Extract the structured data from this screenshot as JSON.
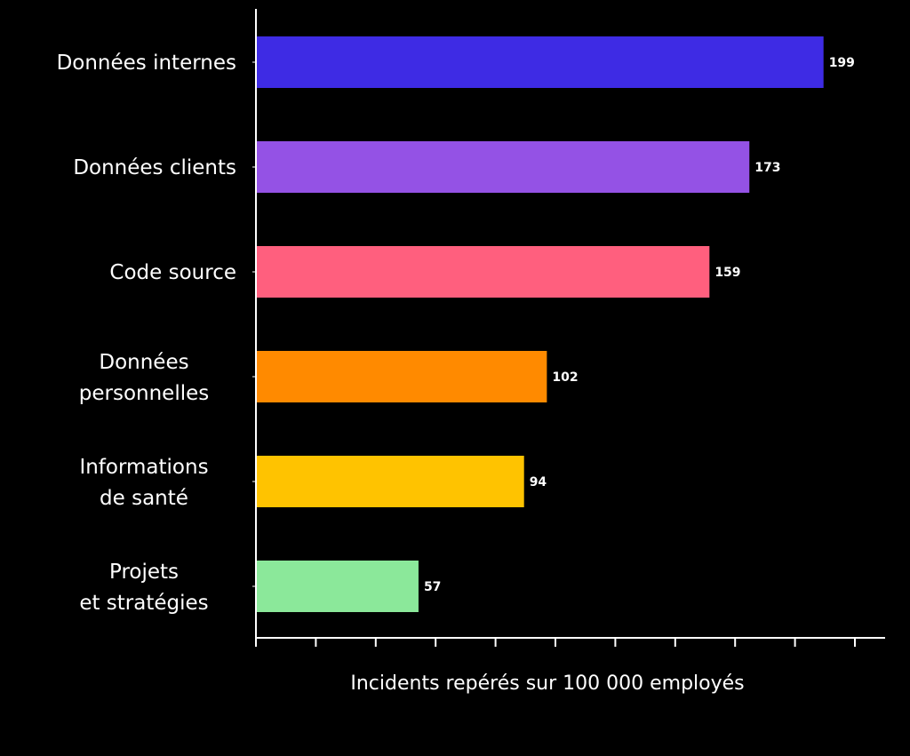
{
  "chart_data": {
    "type": "bar",
    "orientation": "horizontal",
    "categories": [
      "Données internes",
      "Données clients",
      "Code source",
      "Données personnelles",
      "Informations de santé",
      "Projets et stratégies"
    ],
    "values": [
      199,
      173,
      159,
      102,
      94,
      57
    ],
    "colors": [
      "#3e2be4",
      "#9452e5",
      "#ff5f7e",
      "#ff8a00",
      "#ffc300",
      "#8be89a"
    ],
    "title": "",
    "xlabel": "Incidents repérés sur 100 000 employés",
    "ylabel": "",
    "xlim": [
      0,
      210
    ],
    "tick_count": 11,
    "grid": false,
    "legend": "none",
    "data_labels": true,
    "background": "#000000",
    "text_color": "#ffffff"
  }
}
